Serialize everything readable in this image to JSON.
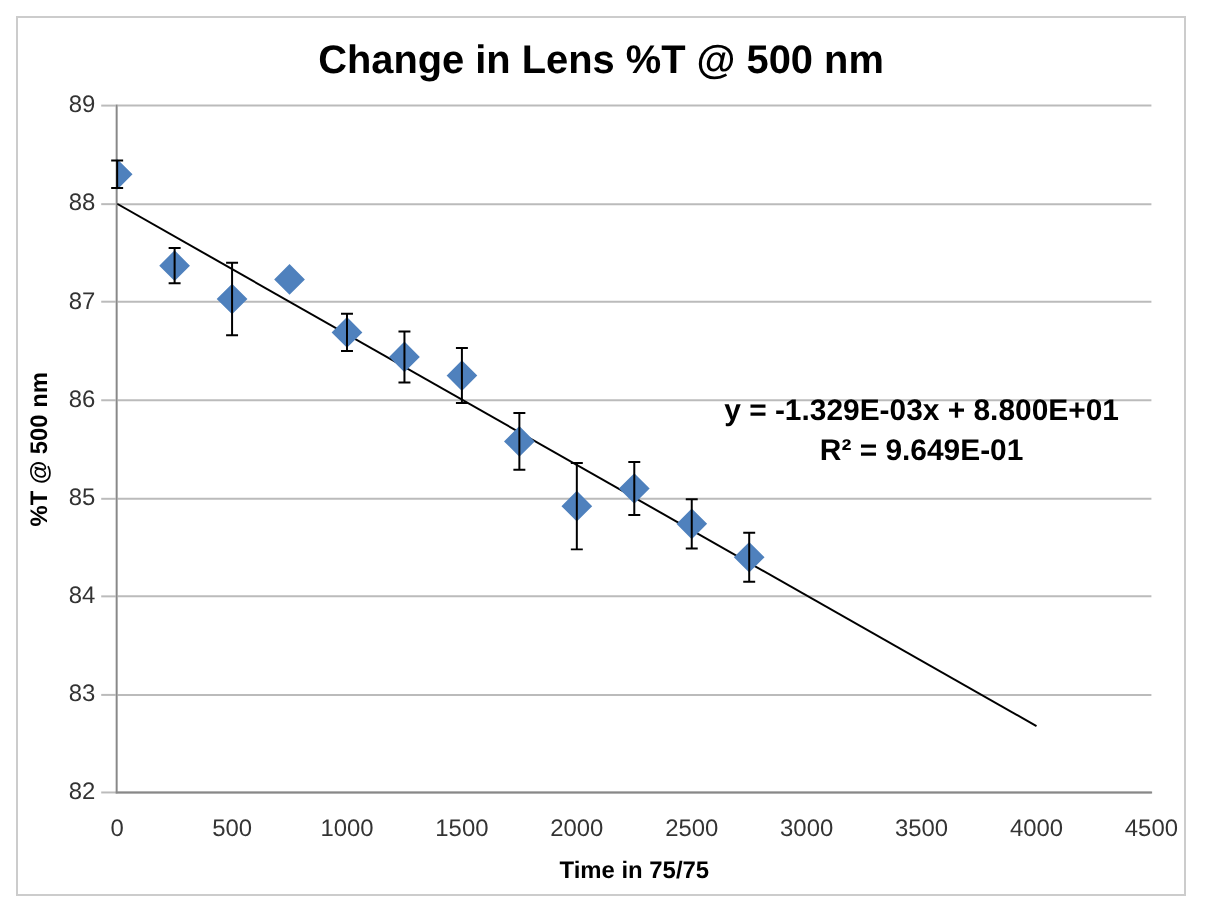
{
  "chart_data": {
    "type": "scatter",
    "title": "Change in Lens %T @ 500 nm",
    "xlabel": "Time in 75/75",
    "ylabel": "%T @ 500 nm",
    "xlim": [
      0,
      4500
    ],
    "xticks": [
      0,
      500,
      1000,
      1500,
      2000,
      2500,
      3000,
      3500,
      4000,
      4500
    ],
    "ylim": [
      82,
      89
    ],
    "yticks": [
      82,
      83,
      84,
      85,
      86,
      87,
      88,
      89
    ],
    "grid": "y",
    "legend": false,
    "marker": "diamond",
    "annotations": [
      "y = -1.329E-03x + 8.800E+01",
      "R² = 9.649E-01"
    ],
    "series": [
      {
        "color": "#4f81bd",
        "x": [
          0,
          250,
          500,
          750,
          1000,
          1250,
          1500,
          1750,
          2000,
          2250,
          2500,
          2750
        ],
        "values": [
          88.3,
          87.37,
          87.03,
          87.23,
          86.69,
          86.44,
          86.25,
          85.58,
          84.92,
          85.1,
          84.74,
          84.4
        ],
        "errors": [
          0.14,
          0.18,
          0.37,
          null,
          0.19,
          0.26,
          0.28,
          0.29,
          0.44,
          0.27,
          0.25,
          0.25
        ]
      },
      {
        "type": "line",
        "color": "#000000",
        "x": [
          0,
          4000
        ],
        "values": [
          88,
          82.68
        ],
        "marker": "none"
      }
    ]
  }
}
